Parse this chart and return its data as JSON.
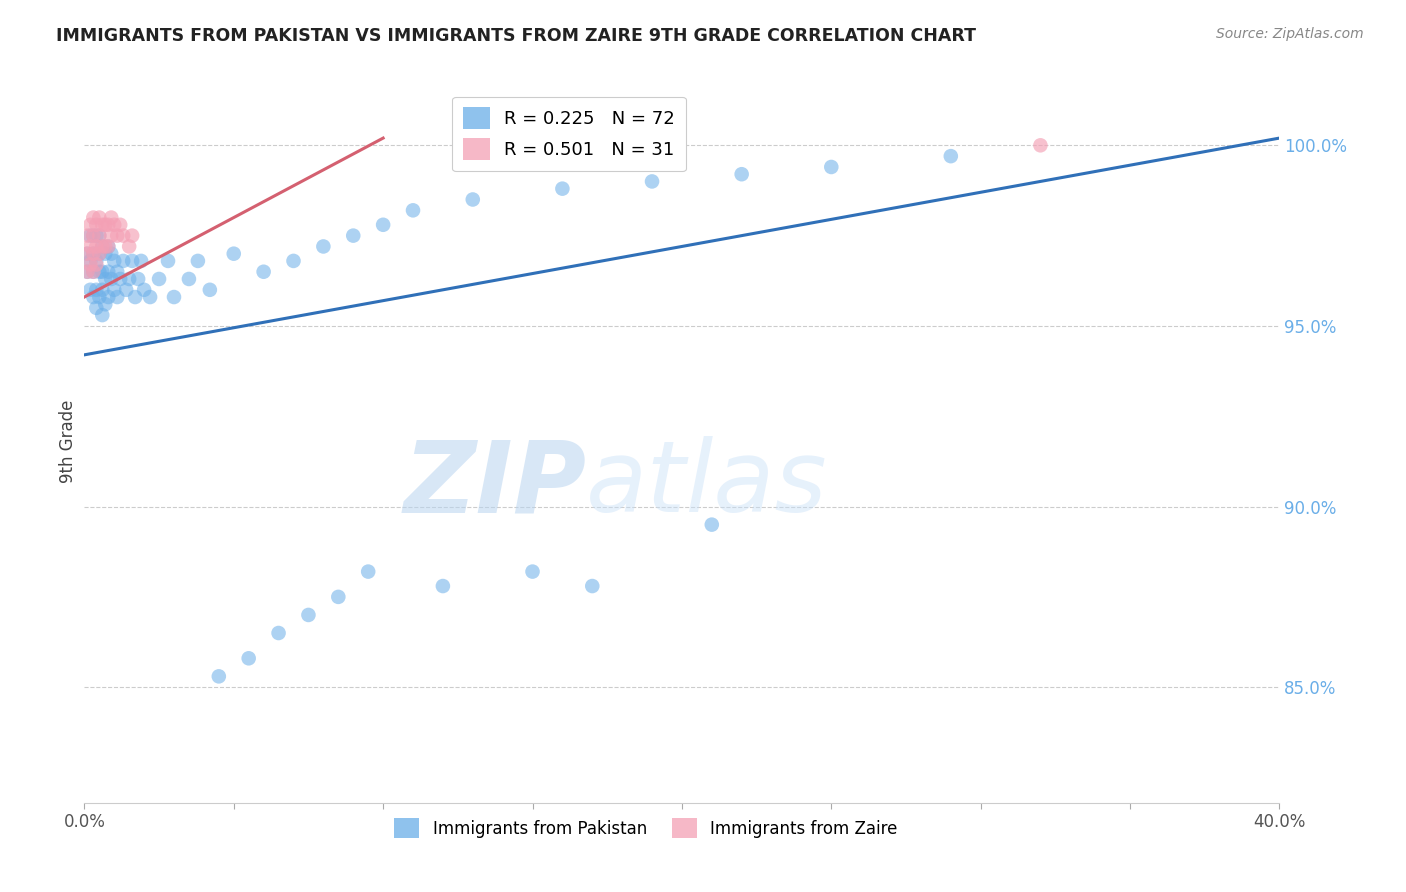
{
  "title": "IMMIGRANTS FROM PAKISTAN VS IMMIGRANTS FROM ZAIRE 9TH GRADE CORRELATION CHART",
  "source": "Source: ZipAtlas.com",
  "ylabel": "9th Grade",
  "r_pakistan": 0.225,
  "n_pakistan": 72,
  "r_zaire": 0.501,
  "n_zaire": 31,
  "xlim": [
    0.0,
    0.4
  ],
  "ylim": [
    0.818,
    1.018
  ],
  "yticks": [
    0.85,
    0.9,
    0.95,
    1.0
  ],
  "ytick_labels": [
    "85.0%",
    "90.0%",
    "95.0%",
    "100.0%"
  ],
  "xticks": [
    0.0,
    0.05,
    0.1,
    0.15,
    0.2,
    0.25,
    0.3,
    0.35,
    0.4
  ],
  "color_pakistan": "#6aaee8",
  "color_zaire": "#f4a0b5",
  "line_color_pakistan": "#3070b8",
  "line_color_zaire": "#d46070",
  "watermark_zip": "ZIP",
  "watermark_atlas": "atlas",
  "pakistan_x": [
    0.001,
    0.001,
    0.002,
    0.002,
    0.002,
    0.003,
    0.003,
    0.003,
    0.003,
    0.004,
    0.004,
    0.004,
    0.004,
    0.005,
    0.005,
    0.005,
    0.005,
    0.006,
    0.006,
    0.006,
    0.006,
    0.007,
    0.007,
    0.007,
    0.008,
    0.008,
    0.008,
    0.009,
    0.009,
    0.01,
    0.01,
    0.011,
    0.011,
    0.012,
    0.013,
    0.014,
    0.015,
    0.016,
    0.017,
    0.018,
    0.019,
    0.02,
    0.022,
    0.025,
    0.028,
    0.03,
    0.035,
    0.038,
    0.042,
    0.05,
    0.06,
    0.07,
    0.08,
    0.09,
    0.1,
    0.11,
    0.13,
    0.16,
    0.19,
    0.22,
    0.25,
    0.29,
    0.21,
    0.17,
    0.15,
    0.12,
    0.095,
    0.085,
    0.075,
    0.065,
    0.055,
    0.045
  ],
  "pakistan_y": [
    0.97,
    0.965,
    0.975,
    0.968,
    0.96,
    0.975,
    0.97,
    0.965,
    0.958,
    0.975,
    0.968,
    0.96,
    0.955,
    0.975,
    0.97,
    0.965,
    0.958,
    0.972,
    0.965,
    0.96,
    0.953,
    0.97,
    0.963,
    0.956,
    0.972,
    0.965,
    0.958,
    0.97,
    0.963,
    0.968,
    0.96,
    0.965,
    0.958,
    0.963,
    0.968,
    0.96,
    0.963,
    0.968,
    0.958,
    0.963,
    0.968,
    0.96,
    0.958,
    0.963,
    0.968,
    0.958,
    0.963,
    0.968,
    0.96,
    0.97,
    0.965,
    0.968,
    0.972,
    0.975,
    0.978,
    0.982,
    0.985,
    0.988,
    0.99,
    0.992,
    0.994,
    0.997,
    0.895,
    0.878,
    0.882,
    0.878,
    0.882,
    0.875,
    0.87,
    0.865,
    0.858,
    0.853
  ],
  "zaire_x": [
    0.001,
    0.001,
    0.001,
    0.002,
    0.002,
    0.002,
    0.003,
    0.003,
    0.003,
    0.003,
    0.004,
    0.004,
    0.004,
    0.005,
    0.005,
    0.005,
    0.006,
    0.006,
    0.007,
    0.007,
    0.008,
    0.008,
    0.009,
    0.009,
    0.01,
    0.011,
    0.012,
    0.013,
    0.015,
    0.016,
    0.32
  ],
  "zaire_y": [
    0.975,
    0.97,
    0.965,
    0.978,
    0.972,
    0.967,
    0.98,
    0.975,
    0.97,
    0.965,
    0.978,
    0.972,
    0.967,
    0.98,
    0.975,
    0.97,
    0.978,
    0.972,
    0.978,
    0.972,
    0.978,
    0.972,
    0.98,
    0.975,
    0.978,
    0.975,
    0.978,
    0.975,
    0.972,
    0.975,
    1.0
  ],
  "pk_line_x": [
    0.0,
    0.4
  ],
  "pk_line_y": [
    0.942,
    1.002
  ],
  "zr_line_x": [
    0.0,
    0.1
  ],
  "zr_line_y": [
    0.958,
    1.002
  ]
}
